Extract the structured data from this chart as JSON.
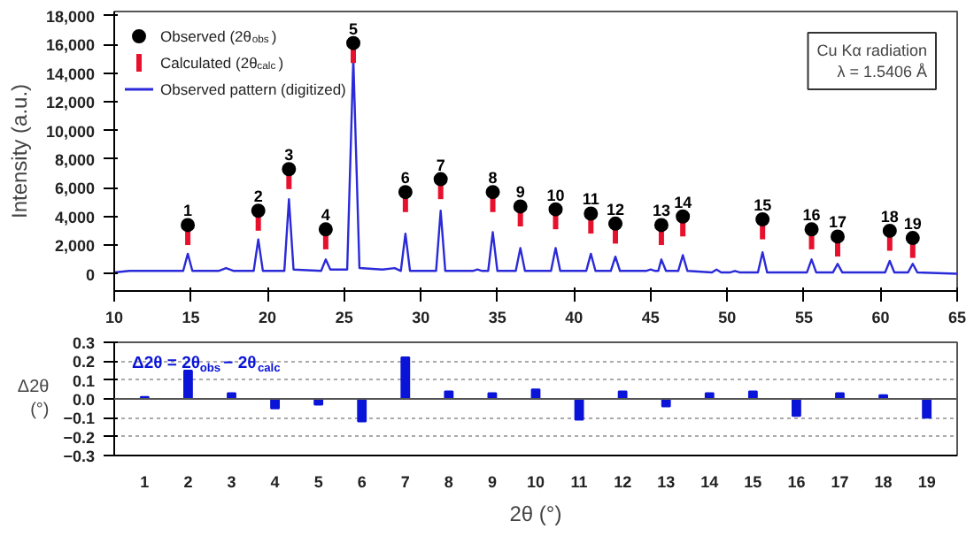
{
  "chart_data": [
    {
      "type": "line",
      "xlim": [
        10,
        65
      ],
      "ylim": [
        -1200,
        18300
      ],
      "xticks": [
        10,
        15,
        20,
        25,
        30,
        35,
        40,
        45,
        50,
        55,
        60,
        65
      ],
      "yticks": [
        0,
        {
          "value": 2000,
          "label": "2,000"
        },
        {
          "value": 4000,
          "label": "4,000"
        },
        {
          "value": 6000,
          "label": "6,000"
        },
        {
          "value": 8000,
          "label": "8,000"
        },
        {
          "value": 10000,
          "label": "10,000"
        },
        {
          "value": 12000,
          "label": "12,000"
        },
        {
          "value": 14000,
          "label": "14,000"
        },
        {
          "value": 16000,
          "label": "16,000"
        },
        {
          "value": 18000,
          "label": "18,000"
        }
      ],
      "ylabel": "Intensity (a.u.)",
      "legend": "top left",
      "grid": false,
      "series": [
        {
          "name": "Observed (2θ$_{obs}$)",
          "type": "scatter",
          "marker": "circle",
          "color": "#000000",
          "x": [
            14.8,
            19.4,
            21.4,
            23.8,
            25.6,
            29.0,
            31.3,
            34.7,
            36.5,
            38.8,
            41.1,
            42.7,
            45.7,
            47.1,
            52.3,
            55.5,
            57.2,
            60.6,
            62.1
          ],
          "values": [
            3400,
            4400,
            7300,
            3100,
            16100,
            5700,
            6600,
            5700,
            4700,
            4500,
            4200,
            3500,
            3400,
            4000,
            3800,
            3100,
            2600,
            3000,
            2500
          ]
        },
        {
          "name": "Calculated (2θ$_{calc}$)",
          "type": "scatter",
          "marker": "square",
          "color": "#e8112d",
          "x": [
            14.8,
            19.4,
            21.4,
            23.8,
            25.6,
            29.0,
            31.3,
            34.7,
            36.5,
            38.8,
            41.1,
            42.7,
            45.7,
            47.1,
            52.3,
            55.5,
            57.2,
            60.6,
            62.1
          ],
          "values": [
            2500,
            3500,
            6400,
            2200,
            15200,
            4800,
            5700,
            4800,
            3800,
            3600,
            3300,
            2600,
            2500,
            3100,
            2900,
            2200,
            1700,
            2100,
            1600
          ]
        },
        {
          "name": "Observed pattern (digitized)",
          "type": "line",
          "color": "#2a2ad8",
          "x": [
            10,
            11,
            13,
            14.5,
            14.8,
            15.1,
            16.8,
            17.3,
            17.8,
            19.1,
            19.4,
            19.7,
            21.1,
            21.4,
            21.7,
            23.5,
            23.8,
            24.1,
            25.2,
            25.6,
            26.0,
            27.5,
            28.3,
            28.7,
            29.0,
            29.3,
            31.0,
            31.3,
            31.6,
            33.4,
            33.7,
            34.0,
            34.4,
            34.7,
            35.0,
            36.2,
            36.5,
            36.8,
            38.5,
            38.8,
            39.1,
            40.8,
            41.1,
            41.4,
            42.4,
            42.7,
            43.0,
            44.7,
            45.0,
            45.3,
            45.5,
            45.7,
            46.0,
            46.8,
            47.1,
            47.4,
            49.0,
            49.3,
            49.6,
            50.2,
            50.5,
            50.8,
            52.0,
            52.3,
            52.6,
            55.2,
            55.5,
            55.8,
            56.9,
            57.2,
            57.5,
            60.3,
            60.6,
            60.9,
            61.8,
            62.1,
            62.4,
            65
          ],
          "values": [
            100,
            200,
            200,
            200,
            1400,
            200,
            200,
            400,
            200,
            200,
            2400,
            200,
            200,
            5200,
            300,
            200,
            1000,
            300,
            300,
            15000,
            400,
            300,
            400,
            200,
            2800,
            200,
            200,
            4400,
            200,
            200,
            300,
            200,
            200,
            2900,
            200,
            200,
            1800,
            200,
            200,
            1800,
            200,
            200,
            1400,
            200,
            200,
            1200,
            200,
            200,
            300,
            200,
            200,
            1000,
            200,
            200,
            1300,
            200,
            100,
            300,
            100,
            100,
            200,
            100,
            100,
            1500,
            100,
            100,
            1000,
            100,
            100,
            700,
            100,
            100,
            900,
            100,
            100,
            700,
            100,
            0
          ]
        }
      ],
      "annotations": [
        {
          "text": "1",
          "x": 14.8,
          "y": 3400
        },
        {
          "text": "2",
          "x": 19.4,
          "y": 4400
        },
        {
          "text": "3",
          "x": 21.4,
          "y": 7300
        },
        {
          "text": "4",
          "x": 23.8,
          "y": 3100
        },
        {
          "text": "5",
          "x": 25.6,
          "y": 16100
        },
        {
          "text": "6",
          "x": 29.0,
          "y": 5700
        },
        {
          "text": "7",
          "x": 31.3,
          "y": 6600
        },
        {
          "text": "8",
          "x": 34.7,
          "y": 5700
        },
        {
          "text": "9",
          "x": 36.5,
          "y": 4700
        },
        {
          "text": "10",
          "x": 38.8,
          "y": 4500
        },
        {
          "text": "11",
          "x": 41.1,
          "y": 4200
        },
        {
          "text": "12",
          "x": 42.7,
          "y": 3500
        },
        {
          "text": "13",
          "x": 45.7,
          "y": 3400
        },
        {
          "text": "14",
          "x": 47.1,
          "y": 4000
        },
        {
          "text": "15",
          "x": 52.3,
          "y": 3800
        },
        {
          "text": "16",
          "x": 55.5,
          "y": 3100
        },
        {
          "text": "17",
          "x": 57.2,
          "y": 2600
        },
        {
          "text": "18",
          "x": 60.6,
          "y": 3000
        },
        {
          "text": "19",
          "x": 62.1,
          "y": 2500
        },
        "Cu Kα radiation\nλ = 1.5406 Å"
      ]
    },
    {
      "type": "bar",
      "categories": [
        "1",
        "2",
        "3",
        "4",
        "5",
        "6",
        "7",
        "8",
        "9",
        "10",
        "11",
        "12",
        "13",
        "14",
        "15",
        "16",
        "17",
        "18",
        "19"
      ],
      "values": [
        0.01,
        0.15,
        0.03,
        -0.05,
        -0.03,
        -0.12,
        0.22,
        0.04,
        0.03,
        0.05,
        -0.11,
        0.04,
        -0.04,
        0.03,
        0.04,
        -0.09,
        0.03,
        0.02,
        -0.1
      ],
      "color": "#0a14d8",
      "ylim": [
        -0.3,
        0.3
      ],
      "yticks": [
        -0.3,
        -0.2,
        -0.1,
        {
          "value": 0,
          "label": "0.0"
        },
        0.1,
        0.2,
        0.3
      ],
      "grid": "y",
      "ylabel": "Δ2θ\n(°)",
      "xlabel": "2θ (°)",
      "annotations": [
        "Δ2θ = 2θ$_{obs}$ − 2θ$_{calc}$"
      ]
    }
  ]
}
